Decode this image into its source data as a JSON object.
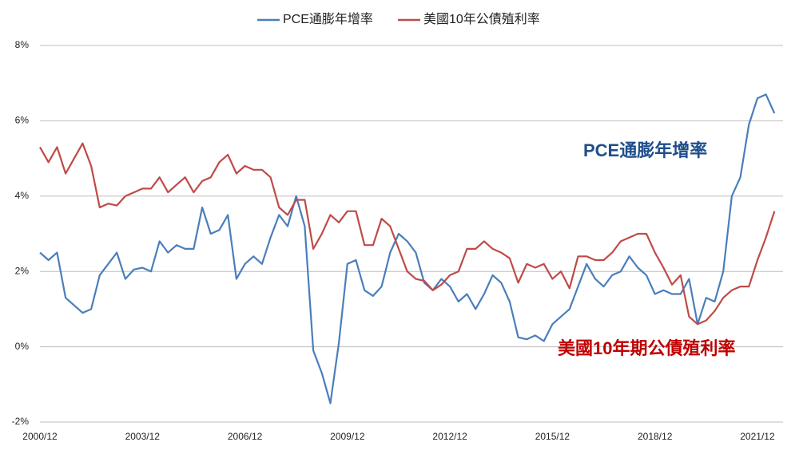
{
  "chart_data": {
    "type": "line",
    "categories": [
      "2000/12",
      null,
      null,
      null,
      null,
      null,
      null,
      null,
      null,
      null,
      null,
      null,
      "2003/12",
      null,
      null,
      null,
      null,
      null,
      null,
      null,
      null,
      null,
      null,
      null,
      "2006/12",
      null,
      null,
      null,
      null,
      null,
      null,
      null,
      null,
      null,
      null,
      null,
      "2009/12",
      null,
      null,
      null,
      null,
      null,
      null,
      null,
      null,
      null,
      null,
      null,
      "2012/12",
      null,
      null,
      null,
      null,
      null,
      null,
      null,
      null,
      null,
      null,
      null,
      "2015/12",
      null,
      null,
      null,
      null,
      null,
      null,
      null,
      null,
      null,
      null,
      null,
      "2018/12",
      null,
      null,
      null,
      null,
      null,
      null,
      null,
      null,
      null,
      null,
      null,
      "2021/12",
      null,
      null
    ],
    "series": [
      {
        "name": "PCE通膨年增率",
        "color": "#4a7ebb",
        "values": [
          2.5,
          2.3,
          2.5,
          1.3,
          1.1,
          0.9,
          1.0,
          1.9,
          2.2,
          2.5,
          1.8,
          2.05,
          2.1,
          2.0,
          2.8,
          2.5,
          2.7,
          2.6,
          2.6,
          3.7,
          3.0,
          3.1,
          3.5,
          1.8,
          2.2,
          2.4,
          2.2,
          2.9,
          3.5,
          3.2,
          4.0,
          3.2,
          -0.1,
          -0.7,
          -1.5,
          0.1,
          2.2,
          2.3,
          1.5,
          1.35,
          1.6,
          2.5,
          3.0,
          2.8,
          2.5,
          1.7,
          1.5,
          1.8,
          1.6,
          1.2,
          1.4,
          1.0,
          1.4,
          1.9,
          1.7,
          1.2,
          0.25,
          0.2,
          0.3,
          0.15,
          0.6,
          0.8,
          1.0,
          1.6,
          2.2,
          1.8,
          1.6,
          1.9,
          2.0,
          2.4,
          2.1,
          1.9,
          1.4,
          1.5,
          1.4,
          1.4,
          1.8,
          0.6,
          1.3,
          1.2,
          2.0,
          4.0,
          4.5,
          5.9,
          6.6,
          6.7,
          6.2
        ]
      },
      {
        "name": "美國10年公債殖利率",
        "color": "#be4b48",
        "values": [
          5.3,
          4.9,
          5.3,
          4.6,
          5.0,
          5.4,
          4.8,
          3.7,
          3.8,
          3.75,
          4.0,
          4.1,
          4.2,
          4.2,
          4.5,
          4.1,
          4.3,
          4.5,
          4.1,
          4.4,
          4.5,
          4.9,
          5.1,
          4.6,
          4.8,
          4.7,
          4.7,
          4.5,
          3.7,
          3.5,
          3.9,
          3.9,
          2.6,
          3.0,
          3.5,
          3.3,
          3.6,
          3.6,
          2.7,
          2.7,
          3.4,
          3.2,
          2.6,
          2.0,
          1.8,
          1.75,
          1.5,
          1.65,
          1.9,
          2.0,
          2.6,
          2.6,
          2.8,
          2.6,
          2.5,
          2.35,
          1.7,
          2.2,
          2.1,
          2.2,
          1.8,
          2.0,
          1.55,
          2.4,
          2.4,
          2.3,
          2.3,
          2.5,
          2.8,
          2.9,
          3.0,
          3.0,
          2.5,
          2.1,
          1.65,
          1.9,
          0.8,
          0.6,
          0.7,
          0.95,
          1.3,
          1.5,
          1.6,
          1.6,
          2.3,
          2.9,
          3.6
        ]
      }
    ],
    "annotations": [
      "PCE通膨年增率",
      "美國10年期公債殖利率"
    ],
    "ylim": [
      -2,
      8
    ],
    "yticks": [
      {
        "value": -2,
        "label": "-2%"
      },
      {
        "value": 0,
        "label": "0%"
      },
      {
        "value": 2,
        "label": "2%"
      },
      {
        "value": 4,
        "label": "4%"
      },
      {
        "value": 6,
        "label": "6%"
      },
      {
        "value": 8,
        "label": "8%"
      }
    ],
    "grid": true,
    "legend": "top"
  }
}
